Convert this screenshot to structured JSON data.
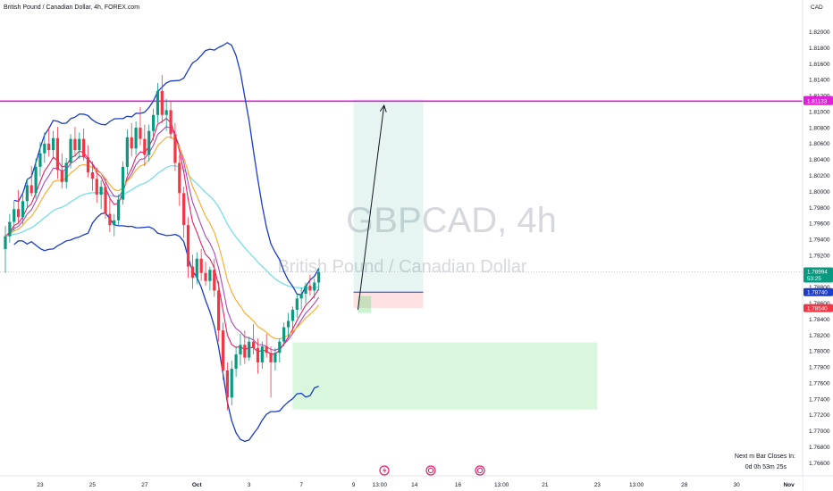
{
  "header": {
    "title": "British Pound / Canadian Dollar, 4h, FOREX.com",
    "currency": "CAD"
  },
  "watermark": {
    "symbol": "GBPCAD, 4h",
    "description": "British Pound / Canadian Dollar"
  },
  "countdown": {
    "line1": "Next m Bar Closes In:",
    "line2": "0d 0h 53m 25s"
  },
  "colors": {
    "bull": "#089981",
    "bear": "#f23645",
    "resistance": "#e020d8",
    "bollinger": "#1a3cc8",
    "ema_slow": "#80deea",
    "ema_fast": "#e91e63",
    "ema_mid": "#ab47bc",
    "ema_orange": "#ffa726",
    "current_price": "#089981"
  },
  "chart_data": {
    "type": "candlestick",
    "y_range": [
      1.7645,
      1.824
    ],
    "y_ticks": [
      "1.82000",
      "1.81800",
      "1.81600",
      "1.81400",
      "1.81200",
      "1.81000",
      "1.80800",
      "1.80600",
      "1.80400",
      "1.80200",
      "1.80000",
      "1.79800",
      "1.79600",
      "1.79400",
      "1.79200",
      "1.79000",
      "1.78800",
      "1.78600",
      "1.78400",
      "1.78200",
      "1.78000",
      "1.77800",
      "1.77600",
      "1.77400",
      "1.77200",
      "1.77000",
      "1.76800",
      "1.76600"
    ],
    "y_tick_values": [
      1.82,
      1.818,
      1.816,
      1.814,
      1.812,
      1.81,
      1.808,
      1.806,
      1.804,
      1.802,
      1.8,
      1.798,
      1.796,
      1.794,
      1.792,
      1.79,
      1.788,
      1.786,
      1.784,
      1.782,
      1.78,
      1.778,
      1.776,
      1.774,
      1.772,
      1.77,
      1.768,
      1.766
    ],
    "x_ticks": [
      {
        "label": "13:00",
        "i": -2
      },
      {
        "label": "23",
        "i": 8
      },
      {
        "label": "25",
        "i": 20
      },
      {
        "label": "27",
        "i": 32
      },
      {
        "label": "Oct",
        "i": 44
      },
      {
        "label": "3",
        "i": 56
      },
      {
        "label": "7",
        "i": 68
      },
      {
        "label": "9",
        "i": 80
      },
      {
        "label": "13:00",
        "i": 86
      },
      {
        "label": "14",
        "i": 94
      },
      {
        "label": "16",
        "i": 104
      },
      {
        "label": "13:00",
        "i": 114
      },
      {
        "label": "21",
        "i": 124
      },
      {
        "label": "23",
        "i": 136
      },
      {
        "label": "13:00",
        "i": 145
      },
      {
        "label": "28",
        "i": 156
      },
      {
        "label": "30",
        "i": 168
      },
      {
        "label": "Nov",
        "i": 180
      }
    ],
    "candles": [
      [
        1.7928,
        1.7957,
        1.7898,
        1.7944
      ],
      [
        1.7944,
        1.7972,
        1.7936,
        1.7962
      ],
      [
        1.7962,
        1.7988,
        1.7951,
        1.7978
      ],
      [
        1.7978,
        1.8002,
        1.7961,
        1.7968
      ],
      [
        1.7968,
        1.7996,
        1.7959,
        1.7988
      ],
      [
        1.7988,
        1.8016,
        1.7979,
        1.8008
      ],
      [
        1.8008,
        1.8032,
        1.7994,
        1.7998
      ],
      [
        1.7998,
        1.8041,
        1.7991,
        1.8031
      ],
      [
        1.8031,
        1.8062,
        1.8019,
        1.8048
      ],
      [
        1.8048,
        1.8074,
        1.8036,
        1.806
      ],
      [
        1.806,
        1.8081,
        1.8044,
        1.8052
      ],
      [
        1.8052,
        1.8076,
        1.8041,
        1.8067
      ],
      [
        1.8067,
        1.8081,
        1.8016,
        1.8027
      ],
      [
        1.8027,
        1.8048,
        1.8004,
        1.8012
      ],
      [
        1.8012,
        1.8042,
        1.8004,
        1.8036
      ],
      [
        1.8036,
        1.8072,
        1.8029,
        1.8066
      ],
      [
        1.8066,
        1.8081,
        1.8044,
        1.8052
      ],
      [
        1.8052,
        1.8074,
        1.8041,
        1.8066
      ],
      [
        1.8066,
        1.8079,
        1.8039,
        1.8043
      ],
      [
        1.8043,
        1.8058,
        1.8018,
        1.8024
      ],
      [
        1.8024,
        1.8038,
        1.8001,
        1.8016
      ],
      [
        1.8016,
        1.803,
        1.7986,
        1.7996
      ],
      [
        1.7996,
        1.8014,
        1.7978,
        1.8006
      ],
      [
        1.8006,
        1.8017,
        1.7966,
        1.7972
      ],
      [
        1.7972,
        1.7991,
        1.7949,
        1.7958
      ],
      [
        1.7958,
        1.7972,
        1.7944,
        1.7964
      ],
      [
        1.7964,
        1.7996,
        1.7958,
        1.799
      ],
      [
        1.799,
        1.8038,
        1.7984,
        1.8031
      ],
      [
        1.8031,
        1.8078,
        1.8021,
        1.8068
      ],
      [
        1.8068,
        1.8086,
        1.8044,
        1.8054
      ],
      [
        1.8054,
        1.8088,
        1.8046,
        1.808
      ],
      [
        1.808,
        1.8106,
        1.8058,
        1.8066
      ],
      [
        1.8066,
        1.8084,
        1.8032,
        1.8046
      ],
      [
        1.8046,
        1.8084,
        1.8038,
        1.8076
      ],
      [
        1.8076,
        1.8104,
        1.8064,
        1.8096
      ],
      [
        1.8096,
        1.8136,
        1.8086,
        1.8126
      ],
      [
        1.8126,
        1.8146,
        1.8086,
        1.8096
      ],
      [
        1.8096,
        1.8116,
        1.8076,
        1.8102
      ],
      [
        1.8102,
        1.8114,
        1.8066,
        1.8072
      ],
      [
        1.8072,
        1.8086,
        1.8026,
        1.8036
      ],
      [
        1.8036,
        1.8046,
        1.7982,
        1.7998
      ],
      [
        1.7998,
        1.8006,
        1.7942,
        1.7958
      ],
      [
        1.7958,
        1.7968,
        1.7892,
        1.7906
      ],
      [
        1.7906,
        1.7921,
        1.7878,
        1.7892
      ],
      [
        1.7892,
        1.7924,
        1.7884,
        1.7916
      ],
      [
        1.7916,
        1.7928,
        1.7888,
        1.7898
      ],
      [
        1.7898,
        1.7912,
        1.7882,
        1.7888
      ],
      [
        1.7888,
        1.7906,
        1.7876,
        1.7902
      ],
      [
        1.7902,
        1.7916,
        1.7868,
        1.7876
      ],
      [
        1.7876,
        1.7888,
        1.7812,
        1.7826
      ],
      [
        1.7826,
        1.7836,
        1.7764,
        1.7776
      ],
      [
        1.7776,
        1.7786,
        1.7726,
        1.7742
      ],
      [
        1.7742,
        1.7788,
        1.7732,
        1.7778
      ],
      [
        1.7778,
        1.7806,
        1.7768,
        1.7796
      ],
      [
        1.7796,
        1.7822,
        1.7782,
        1.7808
      ],
      [
        1.7808,
        1.7826,
        1.7784,
        1.7792
      ],
      [
        1.7792,
        1.7818,
        1.7788,
        1.7812
      ],
      [
        1.7812,
        1.7834,
        1.7796,
        1.7804
      ],
      [
        1.7804,
        1.7816,
        1.7772,
        1.7786
      ],
      [
        1.7786,
        1.7812,
        1.7778,
        1.7806
      ],
      [
        1.7806,
        1.7822,
        1.7792,
        1.7798
      ],
      [
        1.7798,
        1.7806,
        1.7742,
        1.7786
      ],
      [
        1.7786,
        1.7804,
        1.7776,
        1.7798
      ],
      [
        1.7798,
        1.7816,
        1.7786,
        1.7812
      ],
      [
        1.7812,
        1.7836,
        1.7806,
        1.783
      ],
      [
        1.783,
        1.7848,
        1.7818,
        1.7838
      ],
      [
        1.7838,
        1.7856,
        1.7826,
        1.7852
      ],
      [
        1.7852,
        1.7871,
        1.7842,
        1.7866
      ],
      [
        1.7866,
        1.788,
        1.7852,
        1.7872
      ],
      [
        1.7872,
        1.7886,
        1.786,
        1.7882
      ],
      [
        1.7882,
        1.7896,
        1.787,
        1.7876
      ],
      [
        1.7876,
        1.7891,
        1.7866,
        1.7886
      ],
      [
        1.7886,
        1.7904,
        1.7876,
        1.7899
      ]
    ],
    "moving_averages": [
      {
        "name": "ema_slow",
        "period": 40
      },
      {
        "name": "ema_mid",
        "period": 9
      },
      {
        "name": "ema_fast",
        "period": 6
      },
      {
        "name": "ema_orange",
        "period": 14
      }
    ],
    "bollinger": {
      "period": 20,
      "mult": 2.0
    },
    "horizontal_lines": [
      {
        "name": "resistance",
        "price": 1.81133
      },
      {
        "name": "current",
        "price": 1.78994
      }
    ],
    "price_badges": [
      {
        "label": "1.81148",
        "price": 1.81148,
        "color": "#e020d8"
      },
      {
        "label": "1.81133",
        "price": 1.81133,
        "color": "#e020d8"
      },
      {
        "label": "1.78994",
        "sub": "53:25",
        "price": 1.78994,
        "color": "#089981"
      },
      {
        "label": "1.78740",
        "price": 1.7874,
        "color": "#1a3cc8"
      },
      {
        "label": "1.78540",
        "price": 1.7854,
        "color": "#f23645"
      }
    ],
    "zones": [
      {
        "name": "demand-zone",
        "x0": 66,
        "x1": 136,
        "y0": 1.7811,
        "y1": 1.7727,
        "color": "rgba(76,217,100,0.22)"
      },
      {
        "name": "target-zone",
        "x0": 80,
        "x1": 96,
        "y0": 1.8116,
        "y1": 1.7874,
        "color": "rgba(8,153,129,0.10)"
      },
      {
        "name": "stop-zone",
        "x0": 80,
        "x1": 96,
        "y0": 1.7874,
        "y1": 1.7854,
        "color": "rgba(242,54,69,0.15)"
      },
      {
        "name": "entry-box",
        "x0": 81,
        "x1": 84,
        "y0": 1.7869,
        "y1": 1.7848,
        "color": "rgba(76,217,100,0.30)"
      }
    ],
    "projection_arrow": {
      "from": {
        "i": 81,
        "price": 1.7852
      },
      "to": {
        "i": 87,
        "price": 1.8108
      }
    }
  }
}
